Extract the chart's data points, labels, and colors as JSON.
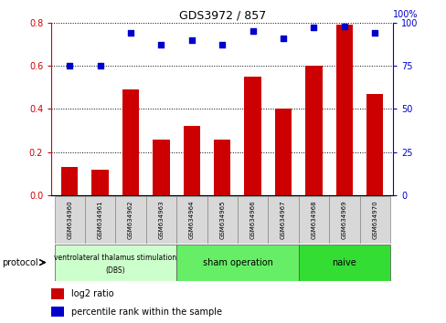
{
  "title": "GDS3972 / 857",
  "samples": [
    "GSM634960",
    "GSM634961",
    "GSM634962",
    "GSM634963",
    "GSM634964",
    "GSM634965",
    "GSM634966",
    "GSM634967",
    "GSM634968",
    "GSM634969",
    "GSM634970"
  ],
  "log2_ratio": [
    0.13,
    0.12,
    0.49,
    0.26,
    0.32,
    0.26,
    0.55,
    0.4,
    0.6,
    0.79,
    0.47
  ],
  "percentile_rank": [
    75,
    75,
    94,
    87,
    90,
    87,
    95,
    91,
    97,
    98,
    94
  ],
  "bar_color": "#cc0000",
  "dot_color": "#0000cc",
  "ylim_left": [
    0,
    0.8
  ],
  "ylim_right": [
    0,
    100
  ],
  "yticks_left": [
    0,
    0.2,
    0.4,
    0.6,
    0.8
  ],
  "yticks_right": [
    0,
    25,
    50,
    75,
    100
  ],
  "group0_color": "#ccffcc",
  "group1_color": "#66ee66",
  "group2_color": "#33dd33",
  "sample_box_color": "#d8d8d8",
  "bar_width": 0.55
}
